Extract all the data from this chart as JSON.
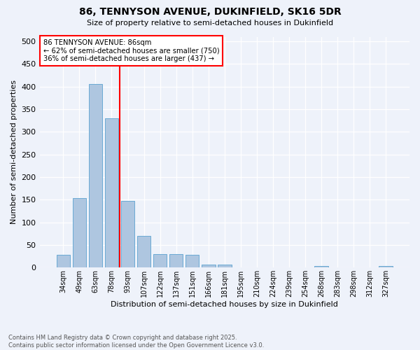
{
  "title1": "86, TENNYSON AVENUE, DUKINFIELD, SK16 5DR",
  "title2": "Size of property relative to semi-detached houses in Dukinfield",
  "xlabel": "Distribution of semi-detached houses by size in Dukinfield",
  "ylabel": "Number of semi-detached properties",
  "footnote1": "Contains HM Land Registry data © Crown copyright and database right 2025.",
  "footnote2": "Contains public sector information licensed under the Open Government Licence v3.0.",
  "categories": [
    "34sqm",
    "49sqm",
    "63sqm",
    "78sqm",
    "93sqm",
    "107sqm",
    "122sqm",
    "137sqm",
    "151sqm",
    "166sqm",
    "181sqm",
    "195sqm",
    "210sqm",
    "224sqm",
    "239sqm",
    "254sqm",
    "268sqm",
    "283sqm",
    "298sqm",
    "312sqm",
    "327sqm"
  ],
  "values": [
    28,
    153,
    405,
    330,
    148,
    70,
    30,
    30,
    28,
    7,
    6,
    0,
    0,
    0,
    0,
    0,
    4,
    0,
    0,
    0,
    4
  ],
  "bar_color": "#aec6e0",
  "bar_edge_color": "#6aaad4",
  "vline_color": "red",
  "annotation_title": "86 TENNYSON AVENUE: 86sqm",
  "annotation_line1": "← 62% of semi-detached houses are smaller (750)",
  "annotation_line2": "36% of semi-detached houses are larger (437) →",
  "annotation_box_color": "white",
  "annotation_box_edge": "red",
  "ylim": [
    0,
    510
  ],
  "yticks": [
    0,
    50,
    100,
    150,
    200,
    250,
    300,
    350,
    400,
    450,
    500
  ],
  "bg_color": "#eef2fa"
}
